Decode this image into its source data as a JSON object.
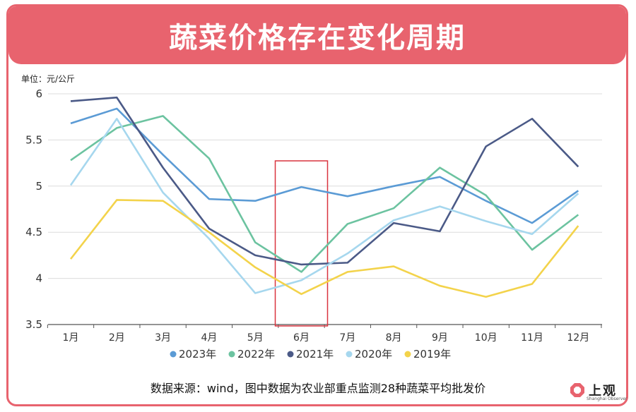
{
  "header": {
    "title": "蔬菜价格存在变化周期"
  },
  "footer": {
    "source": "数据来源：wind，图中数据为农业部重点监测28种蔬菜平均批发价"
  },
  "brand": {
    "name": "上观",
    "sub": "Shanghai Observer",
    "color": "#e8636e"
  },
  "chart_data": {
    "type": "line",
    "ylabel": "单位：元/公斤",
    "ylim": [
      3.5,
      6
    ],
    "yticks": [
      "3.5",
      "4",
      "4.5",
      "5",
      "5.5",
      "6"
    ],
    "ytick_values": [
      3.5,
      4,
      4.5,
      5,
      5.5,
      6
    ],
    "categories": [
      "1月",
      "2月",
      "3月",
      "4月",
      "5月",
      "6月",
      "7月",
      "8月",
      "9月",
      "10月",
      "11月",
      "12月"
    ],
    "grid": true,
    "legend": "bottom",
    "highlight_category": "6月",
    "highlight_color": "#d9343f",
    "series": [
      {
        "name": "2023年",
        "color": "#5b9bd5",
        "values": [
          5.68,
          5.84,
          5.34,
          4.86,
          4.84,
          4.99,
          4.89,
          5.0,
          5.1,
          4.84,
          4.6,
          4.95
        ]
      },
      {
        "name": "2022年",
        "color": "#6cc3a0",
        "values": [
          5.28,
          5.63,
          5.76,
          5.3,
          4.39,
          4.07,
          4.59,
          4.76,
          5.2,
          4.9,
          4.31,
          4.69
        ]
      },
      {
        "name": "2021年",
        "color": "#4b5a87",
        "values": [
          5.92,
          5.96,
          5.2,
          4.54,
          4.25,
          4.15,
          4.17,
          4.6,
          4.51,
          5.43,
          5.73,
          5.21
        ]
      },
      {
        "name": "2020年",
        "color": "#a6d7ee",
        "values": [
          5.01,
          5.73,
          4.93,
          4.43,
          3.84,
          3.98,
          4.27,
          4.63,
          4.78,
          4.62,
          4.48,
          4.92
        ]
      },
      {
        "name": "2019年",
        "color": "#f3d34b",
        "values": [
          4.21,
          4.85,
          4.84,
          4.5,
          4.12,
          3.83,
          4.07,
          4.13,
          3.92,
          3.8,
          3.94,
          4.57
        ]
      }
    ]
  }
}
